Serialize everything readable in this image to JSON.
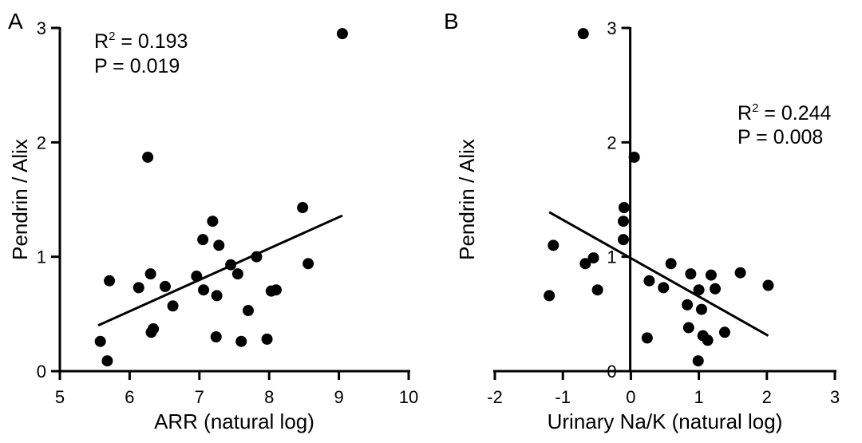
{
  "chart_data": [
    {
      "type": "scatter",
      "panel_label": "A",
      "xlabel": "ARR (natural log)",
      "ylabel": "Pendrin / Alix",
      "xlim": [
        5,
        10
      ],
      "ylim": [
        0,
        3
      ],
      "xticks": [
        "5",
        "6",
        "7",
        "8",
        "9",
        "10"
      ],
      "yticks": [
        "0",
        "1",
        "2",
        "3"
      ],
      "stats": {
        "r2_prefix": "R",
        "r2_sup": "2",
        "r2_value": " = 0.193",
        "p_text": "P = 0.019"
      },
      "points": [
        [
          5.58,
          0.26
        ],
        [
          5.68,
          0.09
        ],
        [
          5.71,
          0.79
        ],
        [
          6.13,
          0.73
        ],
        [
          6.26,
          1.87
        ],
        [
          6.3,
          0.85
        ],
        [
          6.31,
          0.34
        ],
        [
          6.34,
          0.37
        ],
        [
          6.51,
          0.74
        ],
        [
          6.62,
          0.57
        ],
        [
          6.96,
          0.83
        ],
        [
          7.05,
          1.15
        ],
        [
          7.06,
          0.71
        ],
        [
          7.19,
          1.31
        ],
        [
          7.24,
          0.3
        ],
        [
          7.25,
          0.66
        ],
        [
          7.28,
          1.1
        ],
        [
          7.45,
          0.93
        ],
        [
          7.55,
          0.85
        ],
        [
          7.6,
          0.26
        ],
        [
          7.7,
          0.53
        ],
        [
          7.82,
          1.0
        ],
        [
          7.97,
          0.28
        ],
        [
          8.03,
          0.7
        ],
        [
          8.1,
          0.71
        ],
        [
          8.48,
          1.43
        ],
        [
          8.56,
          0.94
        ],
        [
          9.05,
          2.95
        ]
      ],
      "fit_line": [
        [
          5.55,
          0.4
        ],
        [
          9.05,
          1.36
        ]
      ]
    },
    {
      "type": "scatter",
      "panel_label": "B",
      "xlabel": "Urinary Na/K (natural log)",
      "ylabel": "Pendrin / Alix",
      "xlim": [
        -2,
        3
      ],
      "ylim": [
        0,
        3
      ],
      "xticks": [
        "-2",
        "-1",
        "0",
        "1",
        "2",
        "3"
      ],
      "yticks": [
        "0",
        "1",
        "2",
        "3"
      ],
      "stats": {
        "r2_prefix": "R",
        "r2_sup": "2",
        "r2_value": " = 0.244",
        "p_text": "P = 0.008"
      },
      "points": [
        [
          -0.7,
          2.95
        ],
        [
          0.05,
          1.87
        ],
        [
          -0.1,
          1.43
        ],
        [
          -0.11,
          1.31
        ],
        [
          -0.11,
          1.15
        ],
        [
          -1.14,
          1.1
        ],
        [
          -0.55,
          0.99
        ],
        [
          -0.67,
          0.94
        ],
        [
          -1.2,
          0.66
        ],
        [
          -0.49,
          0.71
        ],
        [
          0.27,
          0.79
        ],
        [
          0.48,
          0.73
        ],
        [
          0.59,
          0.94
        ],
        [
          0.88,
          0.85
        ],
        [
          0.83,
          0.58
        ],
        [
          1.0,
          0.71
        ],
        [
          1.04,
          0.54
        ],
        [
          1.18,
          0.84
        ],
        [
          1.24,
          0.72
        ],
        [
          1.61,
          0.86
        ],
        [
          2.02,
          0.75
        ],
        [
          0.24,
          0.29
        ],
        [
          0.85,
          0.38
        ],
        [
          1.06,
          0.31
        ],
        [
          1.13,
          0.27
        ],
        [
          1.38,
          0.34
        ],
        [
          0.99,
          0.09
        ]
      ],
      "fit_line": [
        [
          -1.2,
          1.39
        ],
        [
          2.02,
          0.31
        ]
      ]
    }
  ]
}
